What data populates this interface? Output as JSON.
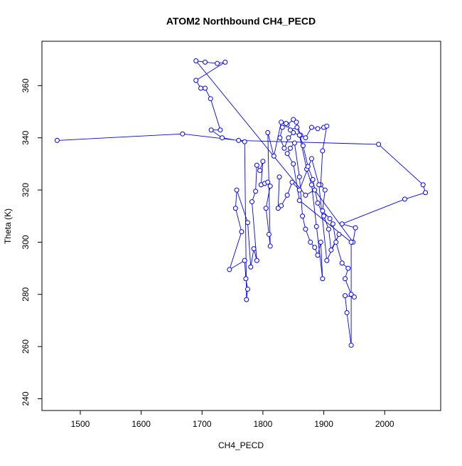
{
  "chart_data": {
    "type": "line-points",
    "title": "ATOM2 Northbound CH4_PECD",
    "xlabel": "CH4_PECD",
    "ylabel": "Theta (K)",
    "color": "#0000ff",
    "xlim": [
      1437,
      2092
    ],
    "ylim": [
      235.5,
      377
    ],
    "xticks": [
      1500,
      1600,
      1700,
      1800,
      1900,
      2000
    ],
    "yticks": [
      240,
      260,
      280,
      300,
      320,
      340,
      360
    ],
    "x": [
      1462,
      1668,
      1760,
      1990,
      2063,
      2067,
      2033,
      1930,
      1952,
      1948,
      1885,
      1870,
      1690,
      1705,
      1725,
      1738,
      1690,
      1698,
      1705,
      1714,
      1730,
      1715,
      1733,
      1770,
      1773,
      1775,
      1772,
      1770,
      1745,
      1765,
      1755,
      1757,
      1775,
      1780,
      1785,
      1790,
      1782,
      1788,
      1790,
      1795,
      1800,
      1797,
      1803,
      1808,
      1812,
      1805,
      1810,
      1812,
      1808,
      1818,
      1830,
      1840,
      1850,
      1855,
      1862,
      1870,
      1880,
      1890,
      1900,
      1905,
      1898,
      1895,
      1902,
      1898,
      1910,
      1915,
      1920,
      1930,
      1940,
      1935,
      1945,
      1950,
      1935,
      1938,
      1945,
      1945,
      1860,
      1850,
      1840,
      1845,
      1852,
      1860,
      1865,
      1870,
      1878,
      1885,
      1890,
      1895,
      1898,
      1888,
      1880,
      1872,
      1860,
      1850,
      1842,
      1835,
      1828,
      1832,
      1838,
      1845,
      1856,
      1866,
      1874,
      1882,
      1890,
      1900,
      1908,
      1912,
      1925,
      1905,
      1892,
      1880,
      1860,
      1848,
      1840,
      1830,
      1825,
      1827
    ],
    "y": [
      339,
      341.5,
      339,
      337.5,
      322,
      319,
      316.5,
      307,
      305.5,
      300,
      320,
      318,
      369.5,
      369,
      368.5,
      369,
      362,
      359,
      359,
      355,
      343,
      343,
      340,
      338.5,
      278,
      282,
      286,
      293,
      289.5,
      304,
      313,
      320,
      307.5,
      290.5,
      297.5,
      293,
      315.5,
      319.5,
      329.5,
      327.5,
      331,
      322,
      322.5,
      323,
      321.5,
      313,
      303,
      298.5,
      342,
      333,
      346,
      345,
      347,
      346,
      341,
      340,
      344,
      343.5,
      344,
      344.5,
      335,
      322,
      320,
      312,
      309,
      307,
      300,
      292,
      290,
      286,
      280,
      279,
      279.5,
      273,
      260.5,
      300,
      316,
      330,
      334,
      336,
      338,
      325,
      310,
      305,
      300,
      298,
      295,
      300,
      286,
      306,
      322,
      328,
      341,
      342,
      340,
      336,
      340,
      344,
      345.5,
      343,
      344,
      337,
      329,
      324,
      315,
      310,
      305,
      297,
      303,
      293,
      322,
      332,
      320,
      323,
      318,
      314,
      313,
      325
    ]
  }
}
